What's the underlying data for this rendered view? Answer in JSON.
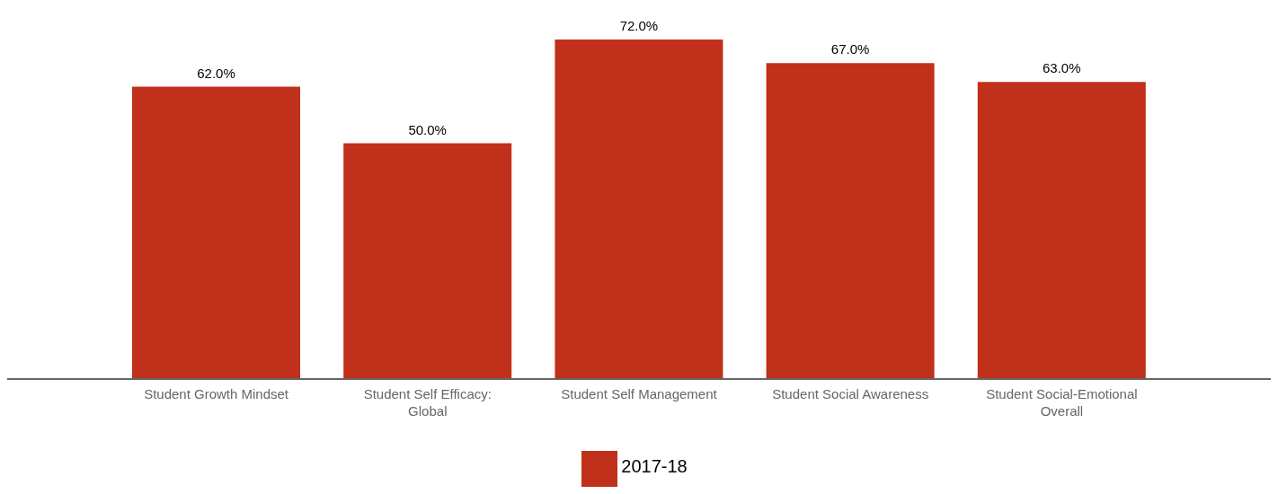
{
  "chart_data": {
    "type": "bar",
    "categories": [
      "Student Growth Mindset",
      "Student Self Efficacy: Global",
      "Student Self Management",
      "Student Social Awareness",
      "Student Social-Emotional Overall"
    ],
    "series": [
      {
        "name": "2017-18",
        "color": "#c0301a",
        "values": [
          62,
          50,
          72,
          67,
          63
        ],
        "value_labels": [
          "62.0%",
          "50.0%",
          "72.0%",
          "67.0%",
          "63.0%"
        ]
      }
    ],
    "legend": "bottom",
    "grid": false
  }
}
